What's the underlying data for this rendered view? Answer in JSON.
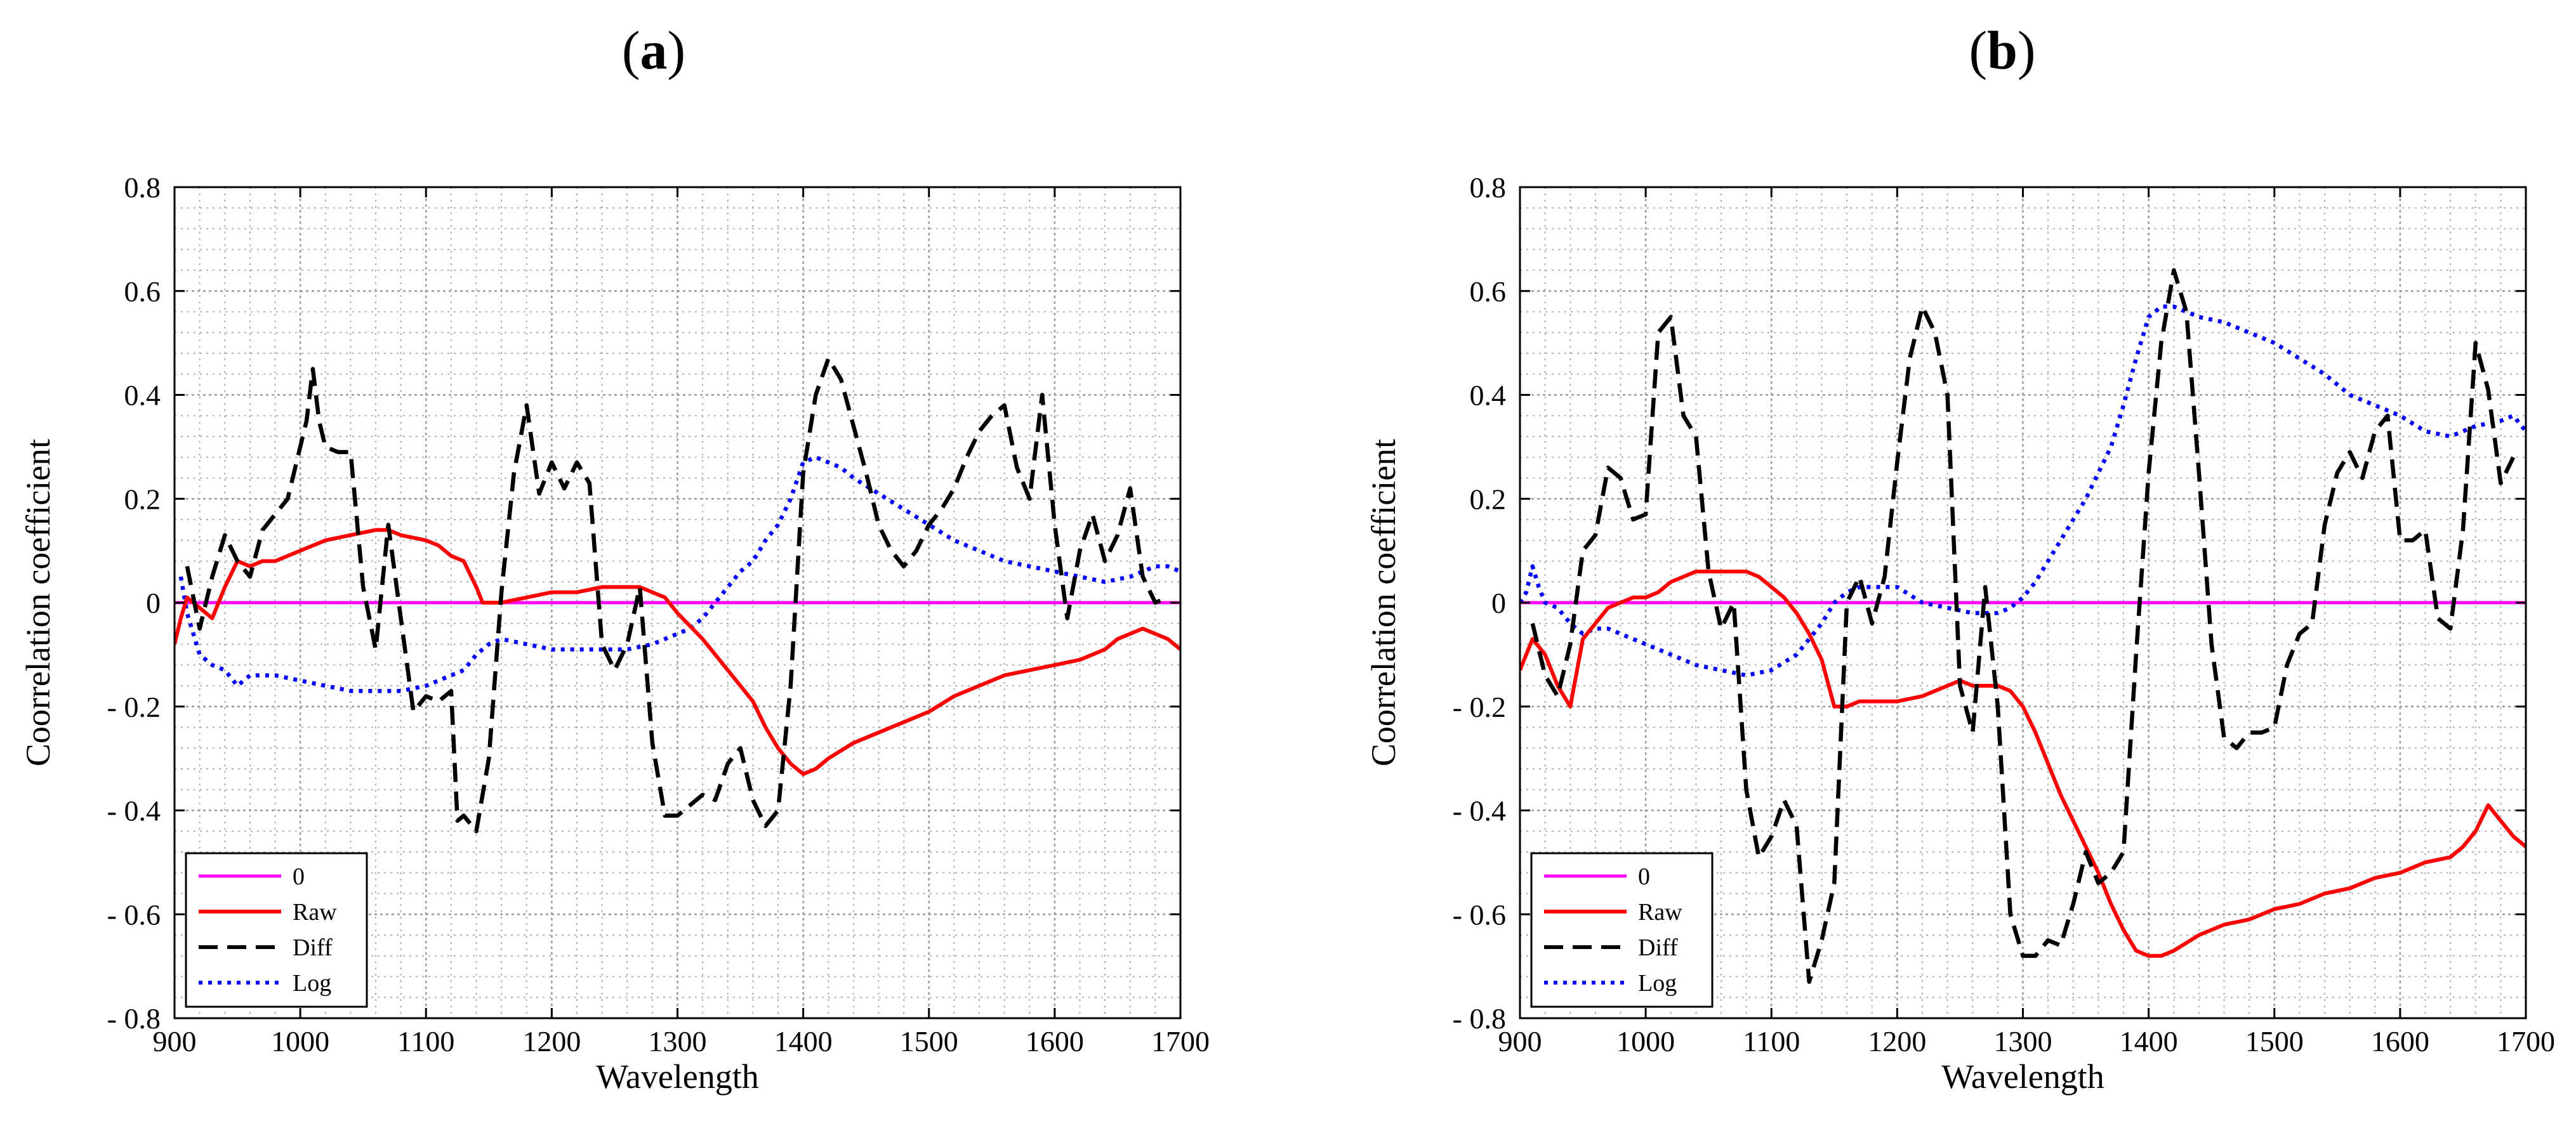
{
  "figure": {
    "panel_labels": [
      {
        "open": "(",
        "letter": "a",
        "close": ")"
      },
      {
        "open": "(",
        "letter": "b",
        "close": ")"
      }
    ]
  },
  "chart_data": [
    {
      "type": "line",
      "title": "(a)",
      "xlabel": "Wavelength",
      "ylabel": "Coorrelation coefficient",
      "xlim": [
        900,
        1700
      ],
      "ylim": [
        -0.8,
        0.8
      ],
      "xticks": [
        900,
        1000,
        1100,
        1200,
        1300,
        1400,
        1500,
        1600,
        1700
      ],
      "yticks": [
        0.8,
        0.6,
        0.4,
        0.2,
        0,
        -0.2,
        -0.4,
        -0.6,
        -0.8
      ],
      "ytick_labels": [
        "0.8",
        "0.6",
        "0.4",
        "0.2",
        "0",
        "- 0.2",
        "- 0.4",
        "- 0.6",
        "- 0.8"
      ],
      "grid": true,
      "legend_position": "bottom-left",
      "series": [
        {
          "name": "0",
          "color": "#ff00ff",
          "style": "solid",
          "x": [
            900,
            1700
          ],
          "y": [
            0,
            0
          ]
        },
        {
          "name": "Raw",
          "color": "#ff0000",
          "style": "solid",
          "x": [
            900,
            905,
            910,
            920,
            930,
            940,
            950,
            960,
            970,
            980,
            1000,
            1020,
            1040,
            1060,
            1070,
            1080,
            1100,
            1110,
            1120,
            1130,
            1140,
            1145,
            1150,
            1160,
            1180,
            1200,
            1220,
            1240,
            1260,
            1270,
            1280,
            1290,
            1300,
            1320,
            1340,
            1350,
            1360,
            1370,
            1380,
            1390,
            1400,
            1410,
            1420,
            1440,
            1460,
            1480,
            1500,
            1520,
            1540,
            1560,
            1580,
            1600,
            1620,
            1640,
            1650,
            1660,
            1670,
            1680,
            1690,
            1700
          ],
          "y": [
            -0.08,
            -0.03,
            0.01,
            -0.01,
            -0.03,
            0.03,
            0.08,
            0.07,
            0.08,
            0.08,
            0.1,
            0.12,
            0.13,
            0.14,
            0.14,
            0.13,
            0.12,
            0.11,
            0.09,
            0.08,
            0.03,
            0.0,
            0.0,
            0.0,
            0.01,
            0.02,
            0.02,
            0.03,
            0.03,
            0.03,
            0.02,
            0.01,
            -0.02,
            -0.07,
            -0.13,
            -0.16,
            -0.19,
            -0.24,
            -0.28,
            -0.31,
            -0.33,
            -0.32,
            -0.3,
            -0.27,
            -0.25,
            -0.23,
            -0.21,
            -0.18,
            -0.16,
            -0.14,
            -0.13,
            -0.12,
            -0.11,
            -0.09,
            -0.07,
            -0.06,
            -0.05,
            -0.06,
            -0.07,
            -0.09
          ]
        },
        {
          "name": "Diff",
          "color": "#000000",
          "style": "dashed",
          "x": [
            910,
            920,
            930,
            940,
            950,
            960,
            970,
            980,
            990,
            1000,
            1005,
            1010,
            1015,
            1020,
            1030,
            1040,
            1050,
            1060,
            1070,
            1080,
            1090,
            1100,
            1110,
            1120,
            1125,
            1130,
            1140,
            1150,
            1160,
            1170,
            1180,
            1190,
            1200,
            1210,
            1220,
            1230,
            1240,
            1250,
            1260,
            1270,
            1280,
            1290,
            1300,
            1310,
            1320,
            1330,
            1340,
            1350,
            1360,
            1370,
            1380,
            1390,
            1400,
            1410,
            1420,
            1430,
            1440,
            1450,
            1460,
            1470,
            1480,
            1490,
            1500,
            1510,
            1520,
            1530,
            1540,
            1550,
            1560,
            1570,
            1580,
            1590,
            1600,
            1610,
            1620,
            1630,
            1640,
            1650,
            1660,
            1670,
            1680,
            1690
          ],
          "y": [
            0.07,
            -0.05,
            0.05,
            0.13,
            0.08,
            0.05,
            0.14,
            0.17,
            0.2,
            0.3,
            0.35,
            0.45,
            0.35,
            0.3,
            0.29,
            0.29,
            0.03,
            -0.09,
            0.15,
            -0.03,
            -0.21,
            -0.18,
            -0.19,
            -0.17,
            -0.42,
            -0.41,
            -0.44,
            -0.3,
            0.02,
            0.25,
            0.38,
            0.21,
            0.27,
            0.22,
            0.27,
            0.23,
            -0.08,
            -0.13,
            -0.08,
            0.03,
            -0.27,
            -0.41,
            -0.41,
            -0.39,
            -0.37,
            -0.38,
            -0.31,
            -0.28,
            -0.38,
            -0.43,
            -0.4,
            -0.16,
            0.25,
            0.4,
            0.47,
            0.43,
            0.34,
            0.25,
            0.15,
            0.1,
            0.07,
            0.1,
            0.15,
            0.18,
            0.22,
            0.28,
            0.33,
            0.36,
            0.38,
            0.26,
            0.2,
            0.4,
            0.15,
            -0.03,
            0.1,
            0.17,
            0.08,
            0.13,
            0.22,
            0.05,
            0.0,
            0.01
          ]
        },
        {
          "name": "Log",
          "color": "#0000ff",
          "style": "dotted",
          "x": [
            905,
            910,
            915,
            920,
            930,
            940,
            950,
            960,
            970,
            980,
            1000,
            1020,
            1040,
            1060,
            1080,
            1100,
            1120,
            1130,
            1140,
            1150,
            1160,
            1180,
            1200,
            1220,
            1240,
            1260,
            1280,
            1300,
            1310,
            1320,
            1330,
            1340,
            1350,
            1360,
            1370,
            1380,
            1390,
            1400,
            1410,
            1420,
            1430,
            1440,
            1460,
            1480,
            1500,
            1520,
            1540,
            1560,
            1580,
            1600,
            1620,
            1640,
            1660,
            1680,
            1690,
            1700
          ],
          "y": [
            0.05,
            -0.02,
            -0.06,
            -0.1,
            -0.12,
            -0.13,
            -0.16,
            -0.14,
            -0.14,
            -0.14,
            -0.15,
            -0.16,
            -0.17,
            -0.17,
            -0.17,
            -0.16,
            -0.14,
            -0.13,
            -0.1,
            -0.08,
            -0.07,
            -0.08,
            -0.09,
            -0.09,
            -0.09,
            -0.09,
            -0.08,
            -0.06,
            -0.05,
            -0.03,
            0.0,
            0.03,
            0.06,
            0.08,
            0.12,
            0.15,
            0.2,
            0.27,
            0.28,
            0.27,
            0.26,
            0.24,
            0.21,
            0.18,
            0.15,
            0.12,
            0.1,
            0.08,
            0.07,
            0.06,
            0.05,
            0.04,
            0.05,
            0.07,
            0.07,
            0.06
          ]
        }
      ]
    },
    {
      "type": "line",
      "title": "(b)",
      "xlabel": "Wavelength",
      "ylabel": "Coorrelation coefficient",
      "xlim": [
        900,
        1700
      ],
      "ylim": [
        -0.8,
        0.8
      ],
      "xticks": [
        900,
        1000,
        1100,
        1200,
        1300,
        1400,
        1500,
        1600,
        1700
      ],
      "yticks": [
        0.8,
        0.6,
        0.4,
        0.2,
        0,
        -0.2,
        -0.4,
        -0.6,
        -0.8
      ],
      "ytick_labels": [
        "0.8",
        "0.6",
        "0.4",
        "0.2",
        "0",
        "- 0.2",
        "- 0.4",
        "- 0.6",
        "- 0.8"
      ],
      "grid": true,
      "legend_position": "bottom-left",
      "series": [
        {
          "name": "0",
          "color": "#ff00ff",
          "style": "solid",
          "x": [
            900,
            1700
          ],
          "y": [
            0,
            0
          ]
        },
        {
          "name": "Raw",
          "color": "#ff0000",
          "style": "solid",
          "x": [
            900,
            910,
            920,
            930,
            940,
            950,
            960,
            970,
            980,
            990,
            1000,
            1010,
            1020,
            1030,
            1040,
            1060,
            1080,
            1090,
            1100,
            1110,
            1120,
            1130,
            1140,
            1150,
            1160,
            1170,
            1180,
            1200,
            1220,
            1240,
            1250,
            1260,
            1280,
            1290,
            1300,
            1310,
            1320,
            1330,
            1340,
            1350,
            1360,
            1370,
            1380,
            1390,
            1400,
            1410,
            1420,
            1440,
            1460,
            1480,
            1500,
            1520,
            1540,
            1560,
            1580,
            1600,
            1620,
            1640,
            1650,
            1660,
            1670,
            1680,
            1690,
            1700
          ],
          "y": [
            -0.13,
            -0.07,
            -0.1,
            -0.16,
            -0.2,
            -0.07,
            -0.04,
            -0.01,
            0.0,
            0.01,
            0.01,
            0.02,
            0.04,
            0.05,
            0.06,
            0.06,
            0.06,
            0.05,
            0.03,
            0.01,
            -0.02,
            -0.06,
            -0.11,
            -0.2,
            -0.2,
            -0.19,
            -0.19,
            -0.19,
            -0.18,
            -0.16,
            -0.15,
            -0.16,
            -0.16,
            -0.17,
            -0.2,
            -0.25,
            -0.31,
            -0.37,
            -0.42,
            -0.47,
            -0.52,
            -0.58,
            -0.63,
            -0.67,
            -0.68,
            -0.68,
            -0.67,
            -0.64,
            -0.62,
            -0.61,
            -0.59,
            -0.58,
            -0.56,
            -0.55,
            -0.53,
            -0.52,
            -0.5,
            -0.49,
            -0.47,
            -0.44,
            -0.39,
            -0.42,
            -0.45,
            -0.47
          ]
        },
        {
          "name": "Diff",
          "color": "#000000",
          "style": "dashed",
          "x": [
            910,
            920,
            930,
            940,
            950,
            960,
            970,
            980,
            990,
            1000,
            1010,
            1020,
            1030,
            1040,
            1050,
            1060,
            1070,
            1080,
            1090,
            1100,
            1110,
            1120,
            1130,
            1140,
            1150,
            1160,
            1170,
            1180,
            1190,
            1200,
            1210,
            1220,
            1230,
            1240,
            1250,
            1260,
            1270,
            1280,
            1290,
            1300,
            1310,
            1320,
            1330,
            1340,
            1350,
            1360,
            1370,
            1380,
            1390,
            1400,
            1410,
            1420,
            1430,
            1440,
            1450,
            1460,
            1470,
            1480,
            1490,
            1500,
            1510,
            1520,
            1530,
            1540,
            1550,
            1560,
            1570,
            1580,
            1590,
            1600,
            1610,
            1620,
            1630,
            1640,
            1650,
            1660,
            1670,
            1680,
            1690
          ],
          "y": [
            -0.04,
            -0.14,
            -0.18,
            -0.08,
            0.1,
            0.13,
            0.26,
            0.24,
            0.16,
            0.17,
            0.52,
            0.55,
            0.36,
            0.32,
            0.06,
            -0.05,
            0.0,
            -0.36,
            -0.49,
            -0.45,
            -0.38,
            -0.43,
            -0.73,
            -0.65,
            -0.54,
            0.0,
            0.05,
            -0.04,
            0.05,
            0.27,
            0.47,
            0.57,
            0.52,
            0.4,
            -0.16,
            -0.25,
            0.03,
            -0.2,
            -0.6,
            -0.68,
            -0.68,
            -0.65,
            -0.66,
            -0.58,
            -0.48,
            -0.54,
            -0.52,
            -0.48,
            -0.1,
            0.25,
            0.5,
            0.64,
            0.56,
            0.25,
            -0.08,
            -0.26,
            -0.28,
            -0.25,
            -0.25,
            -0.24,
            -0.12,
            -0.06,
            -0.04,
            0.15,
            0.25,
            0.29,
            0.24,
            0.33,
            0.36,
            0.12,
            0.12,
            0.14,
            -0.03,
            -0.05,
            0.14,
            0.5,
            0.41,
            0.23,
            0.28
          ]
        },
        {
          "name": "Log",
          "color": "#0000ff",
          "style": "dotted",
          "x": [
            900,
            905,
            910,
            915,
            920,
            930,
            940,
            950,
            960,
            970,
            980,
            1000,
            1020,
            1040,
            1060,
            1080,
            1100,
            1120,
            1140,
            1150,
            1160,
            1170,
            1180,
            1200,
            1220,
            1240,
            1260,
            1280,
            1290,
            1300,
            1310,
            1320,
            1330,
            1340,
            1350,
            1360,
            1370,
            1380,
            1390,
            1400,
            1410,
            1420,
            1440,
            1460,
            1480,
            1500,
            1520,
            1540,
            1560,
            1580,
            1600,
            1620,
            1640,
            1660,
            1680,
            1690,
            1700
          ],
          "y": [
            0.0,
            0.02,
            0.07,
            0.03,
            0.0,
            -0.01,
            -0.04,
            -0.06,
            -0.05,
            -0.05,
            -0.06,
            -0.08,
            -0.1,
            -0.12,
            -0.13,
            -0.14,
            -0.13,
            -0.1,
            -0.04,
            0.0,
            0.02,
            0.03,
            0.03,
            0.03,
            0.0,
            -0.01,
            -0.02,
            -0.02,
            -0.01,
            0.01,
            0.04,
            0.08,
            0.12,
            0.16,
            0.2,
            0.25,
            0.3,
            0.38,
            0.47,
            0.55,
            0.57,
            0.57,
            0.55,
            0.54,
            0.52,
            0.5,
            0.47,
            0.44,
            0.4,
            0.38,
            0.36,
            0.33,
            0.32,
            0.34,
            0.35,
            0.36,
            0.33
          ]
        }
      ]
    }
  ]
}
